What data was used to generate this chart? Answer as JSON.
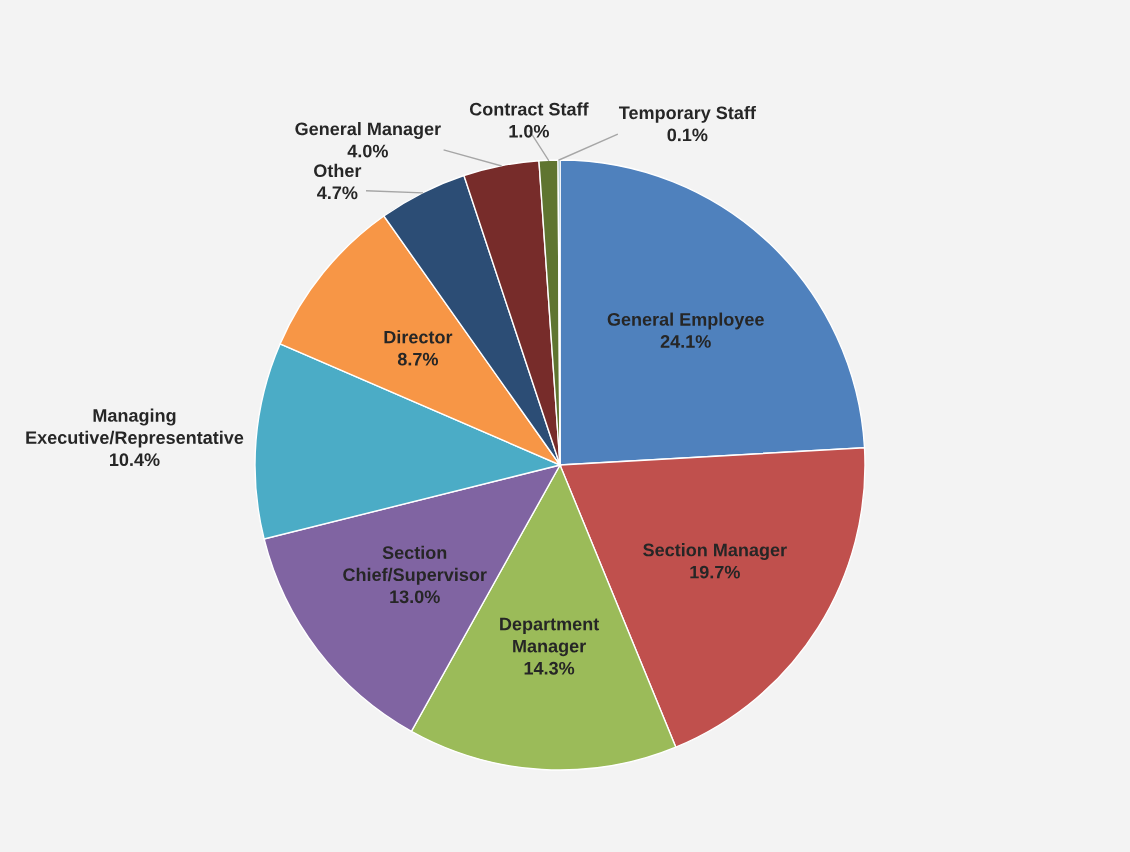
{
  "chart_data": {
    "type": "pie",
    "categories": [
      "General Employee",
      "Section Manager",
      "Department Manager",
      "Section Chief/Supervisor",
      "Managing Executive/Representative",
      "Director",
      "Other",
      "General Manager",
      "Contract Staff",
      "Temporary Staff"
    ],
    "values": [
      24.1,
      19.7,
      14.3,
      13.0,
      10.4,
      8.7,
      4.7,
      4.0,
      1.0,
      0.1
    ],
    "value_labels": [
      "24.1%",
      "19.7%",
      "14.3%",
      "13.0%",
      "10.4%",
      "8.7%",
      "4.7%",
      "4.0%",
      "1.0%",
      "0.1%"
    ],
    "colors": [
      "#4f81bd",
      "#c0504d",
      "#9bbb59",
      "#8064a2",
      "#4bacc6",
      "#f79646",
      "#2c4d75",
      "#772c2a",
      "#5f7530",
      "#276a7c"
    ],
    "legend": false
  }
}
